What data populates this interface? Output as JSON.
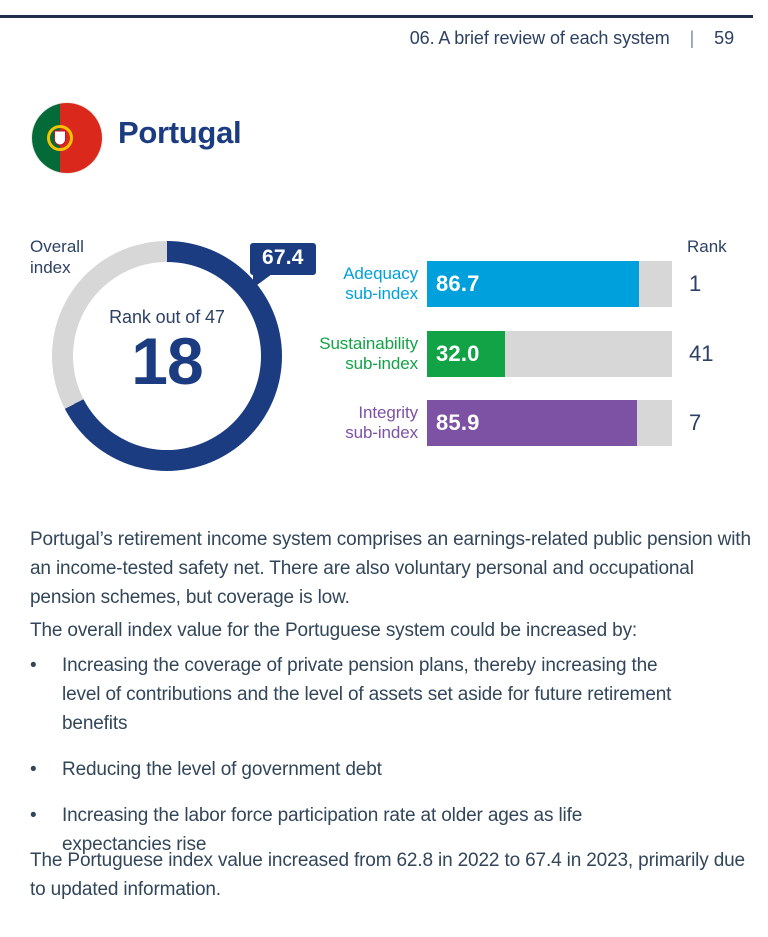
{
  "header": {
    "section": "06. A brief review of each system",
    "separator": "|",
    "page_number": "59"
  },
  "country": {
    "name": "Portugal"
  },
  "overall": {
    "label": "Overall index",
    "value": "67.4",
    "fill_pct": 67.4,
    "rank_label": "Rank out of 47",
    "rank": "18"
  },
  "subindices": {
    "rank_header": "Rank",
    "rows": [
      {
        "label_line1": "Adequacy",
        "label_line2": "sub-index",
        "value": "86.7",
        "pct": 86.7,
        "rank": "1",
        "color": "#00a0dc"
      },
      {
        "label_line1": "Sustainability",
        "label_line2": "sub-index",
        "value": "32.0",
        "pct": 32.0,
        "rank": "41",
        "color": "#12a347"
      },
      {
        "label_line1": "Integrity",
        "label_line2": "sub-index",
        "value": "85.9",
        "pct": 85.9,
        "rank": "7",
        "color": "#7d52a5"
      }
    ]
  },
  "body": {
    "bullet_char": "•",
    "p1": "Portugal’s retirement income system comprises an earnings-related public pension with an income-tested safety net. There are also voluntary personal and occupational pension schemes, but coverage is low.",
    "p2": "The overall index value for the Portuguese system could be increased by:",
    "bullets": [
      "Increasing the coverage of private pension plans, thereby increasing the level of contributions and the level of assets set aside for future retirement benefits",
      "Reducing the level of government debt",
      "Increasing the labor force participation rate at older ages as life expectancies rise"
    ],
    "p3": "The Portuguese index value increased from 62.8 in 2022 to 67.4 in 2023, primarily due to updated information."
  },
  "colors": {
    "navy": "#1c3c82",
    "slate": "#2c4164",
    "body": "#32465a",
    "track": "#d7d7d7",
    "rule": "#20304a",
    "flag_green": "#046a38",
    "flag_red": "#da291c"
  },
  "chart_data": [
    {
      "type": "donut",
      "title": "Overall index",
      "value": 67.4,
      "max": 100,
      "center_label": "Rank out of 47",
      "center_value": 18,
      "fill_color": "#1c3c82",
      "remainder_color": "#d7d7d7",
      "callout_value": "67.4"
    },
    {
      "type": "bar",
      "orientation": "horizontal",
      "categories": [
        "Adequacy sub-index",
        "Sustainability sub-index",
        "Integrity sub-index"
      ],
      "values": [
        86.7,
        32.0,
        85.9
      ],
      "ranks": [
        1,
        41,
        7
      ],
      "rank_header": "Rank",
      "xlim": [
        0,
        100
      ],
      "colors": [
        "#00a0dc",
        "#12a347",
        "#7d52a5"
      ],
      "value_labels_inside_bars": true
    }
  ]
}
